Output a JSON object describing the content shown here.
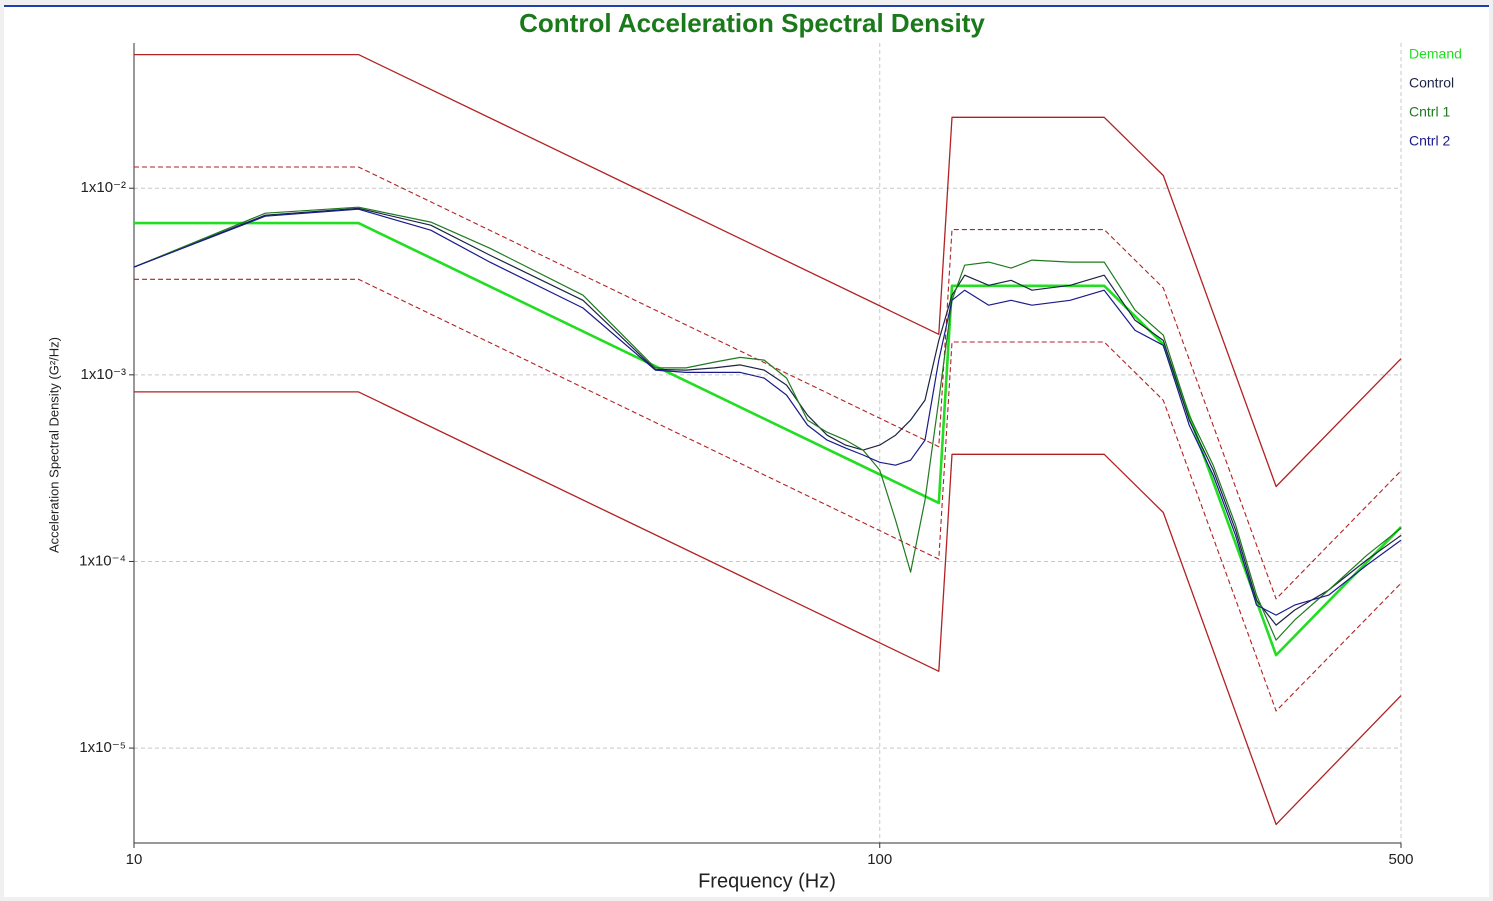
{
  "chart_data": {
    "type": "line",
    "title": "Control Acceleration Spectral Density",
    "x_label": "Frequency (Hz)",
    "y_label": "Acceleration Spectral Density (G²/Hz)",
    "xscale": "log",
    "yscale": "log",
    "xlim": [
      10,
      500
    ],
    "ylim": [
      3.1e-06,
      0.06
    ],
    "xticks": [
      10,
      100,
      500
    ],
    "yticks": [
      {
        "value": 0.01,
        "label": "1x10⁻²"
      },
      {
        "value": 0.001,
        "label": "1x10⁻³"
      },
      {
        "value": 0.0001,
        "label": "1x10⁻⁴"
      },
      {
        "value": 1e-05,
        "label": "1x10⁻⁵"
      }
    ],
    "grid": true,
    "legend": "right",
    "series": [
      {
        "name": "Demand",
        "color": "#22dd22",
        "width": 2.6,
        "x": [
          10,
          20,
          120,
          125,
          200,
          240,
          340,
          500
        ],
        "values": [
          0.0065,
          0.0065,
          0.000206,
          0.003,
          0.003,
          0.00146,
          3.15e-05,
          0.000153
        ]
      },
      {
        "name": "Control",
        "color": "#1c2444",
        "width": 1.2,
        "x": [
          10,
          15,
          20,
          25,
          30,
          40,
          50,
          55,
          60,
          65,
          70,
          75,
          80,
          85,
          90,
          95,
          100,
          105,
          110,
          115,
          120,
          125,
          130,
          140,
          150,
          160,
          180,
          200,
          220,
          240,
          260,
          280,
          300,
          320,
          340,
          360,
          400,
          450,
          500
        ],
        "values": [
          0.00378,
          0.00717,
          0.00781,
          0.00634,
          0.00438,
          0.00251,
          0.00107,
          0.00106,
          0.00109,
          0.00113,
          0.00106,
          0.000881,
          0.000608,
          0.000475,
          0.00042,
          0.000395,
          0.00042,
          0.000475,
          0.000572,
          0.000732,
          0.00153,
          0.00267,
          0.00342,
          0.00302,
          0.00321,
          0.00284,
          0.00302,
          0.00342,
          0.00196,
          0.00153,
          0.000572,
          0.000309,
          0.000147,
          6.21e-05,
          4.56e-05,
          5.49e-05,
          7.03e-05,
          0.000102,
          0.000138
        ]
      },
      {
        "name": "Cntrl 1",
        "color": "#1f7a1f",
        "width": 1.2,
        "x": [
          10,
          15,
          20,
          25,
          30,
          40,
          50,
          55,
          60,
          65,
          70,
          75,
          80,
          85,
          90,
          95,
          100,
          105,
          110,
          115,
          120,
          125,
          130,
          140,
          150,
          160,
          180,
          200,
          220,
          240,
          260,
          280,
          300,
          320,
          340,
          360,
          400,
          450,
          500
        ],
        "values": [
          0.00378,
          0.00735,
          0.00791,
          0.00658,
          0.00477,
          0.00267,
          0.00109,
          0.00109,
          0.00117,
          0.00124,
          0.0012,
          0.00096,
          0.000572,
          0.000493,
          0.000447,
          0.000395,
          0.000309,
          0.000167,
          8.77e-05,
          0.000213,
          0.000732,
          0.00251,
          0.00387,
          0.00402,
          0.00373,
          0.00412,
          0.00402,
          0.00402,
          0.00222,
          0.00163,
          0.000608,
          0.000328,
          0.000157,
          6.6e-05,
          3.79e-05,
          4.85e-05,
          7.03e-05,
          0.000108,
          0.000151
        ]
      },
      {
        "name": "Cntrl 2",
        "color": "#1a1a8c",
        "width": 1.2,
        "x": [
          10,
          15,
          20,
          25,
          30,
          40,
          50,
          55,
          60,
          65,
          70,
          75,
          80,
          85,
          90,
          95,
          100,
          105,
          110,
          115,
          120,
          125,
          130,
          140,
          150,
          160,
          180,
          200,
          220,
          240,
          260,
          280,
          300,
          320,
          340,
          360,
          400,
          450,
          500
        ],
        "values": [
          0.00378,
          0.00708,
          0.00772,
          0.00596,
          0.00402,
          0.00228,
          0.00106,
          0.00103,
          0.00103,
          0.00103,
          0.00096,
          0.000779,
          0.000538,
          0.000447,
          0.000405,
          0.000372,
          0.00034,
          0.000328,
          0.000349,
          0.000447,
          0.0012,
          0.00251,
          0.00284,
          0.00236,
          0.00251,
          0.00236,
          0.00251,
          0.00284,
          0.00173,
          0.00144,
          0.000538,
          0.00029,
          0.000138,
          5.84e-05,
          5.16e-05,
          5.84e-05,
          6.6e-05,
          9.57e-05,
          0.00013
        ]
      },
      {
        "color": "#b22222",
        "width": 1.3,
        "dash": false,
        "x": [
          10,
          20,
          120,
          125,
          200,
          240,
          340,
          500
        ],
        "values": [
          0.052,
          0.052,
          0.00165,
          0.024,
          0.024,
          0.0117,
          0.000252,
          0.00122
        ]
      },
      {
        "color": "#b22222",
        "width": 1.1,
        "dash": true,
        "x": [
          10,
          20,
          120,
          125,
          200,
          240,
          340,
          500
        ],
        "values": [
          0.013,
          0.013,
          0.000412,
          0.006,
          0.006,
          0.00292,
          6.3e-05,
          0.000306
        ]
      },
      {
        "color": "#b22222",
        "width": 1.1,
        "dash": true,
        "x": [
          10,
          20,
          120,
          125,
          200,
          240,
          340,
          500
        ],
        "values": [
          0.00325,
          0.00325,
          0.000103,
          0.0015,
          0.0015,
          0.00073,
          1.58e-05,
          7.65e-05
        ]
      },
      {
        "color": "#b22222",
        "width": 1.3,
        "dash": false,
        "x": [
          10,
          20,
          120,
          125,
          200,
          240,
          340,
          500
        ],
        "values": [
          0.00081,
          0.00081,
          2.58e-05,
          0.000375,
          0.000375,
          0.000183,
          3.9e-06,
          1.91e-05
        ]
      }
    ]
  }
}
